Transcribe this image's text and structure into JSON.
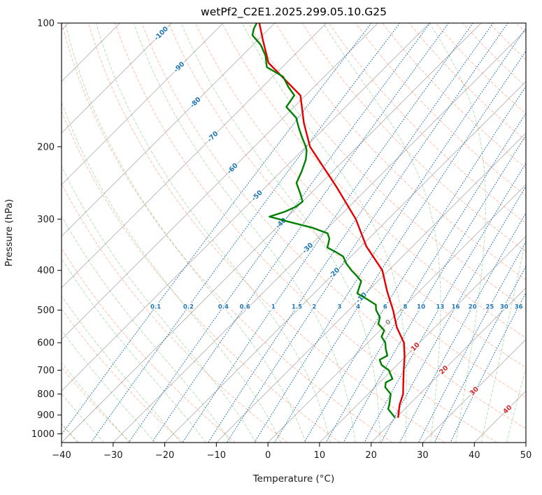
{
  "title": "wetPf2_C2E1.2025.299.05.10.G25",
  "axes": {
    "xlabel": "Temperature (°C)",
    "ylabel": "Pressure (hPa)",
    "xlim": [
      -40,
      50
    ],
    "plim": [
      100,
      1050
    ],
    "x_ticks": [
      {
        "v": -40,
        "label": "−40"
      },
      {
        "v": -30,
        "label": "−30"
      },
      {
        "v": -20,
        "label": "−20"
      },
      {
        "v": -10,
        "label": "−10"
      },
      {
        "v": 0,
        "label": "0"
      },
      {
        "v": 10,
        "label": "10"
      },
      {
        "v": 20,
        "label": "20"
      },
      {
        "v": 30,
        "label": "30"
      },
      {
        "v": 40,
        "label": "40"
      },
      {
        "v": 50,
        "label": "50"
      }
    ],
    "p_ticks": [
      {
        "v": 100,
        "label": "100"
      },
      {
        "v": 200,
        "label": "200"
      },
      {
        "v": 300,
        "label": "300"
      },
      {
        "v": 400,
        "label": "400"
      },
      {
        "v": 500,
        "label": "500"
      },
      {
        "v": 600,
        "label": "600"
      },
      {
        "v": 700,
        "label": "700"
      },
      {
        "v": 800,
        "label": "800"
      },
      {
        "v": 900,
        "label": "900"
      },
      {
        "v": 1000,
        "label": "1000"
      }
    ]
  },
  "chart_data": {
    "type": "skewt",
    "skew_deg": 45,
    "grid": true,
    "isotherms": {
      "min": -150,
      "max": 50,
      "step": 10,
      "color": "#ababab",
      "labels": [
        {
          "t": -100,
          "p": 106,
          "color": "#1f77b4"
        },
        {
          "t": -90,
          "p": 128,
          "color": "#1f77b4"
        },
        {
          "t": -80,
          "p": 156,
          "color": "#1f77b4"
        },
        {
          "t": -70,
          "p": 189,
          "color": "#1f77b4"
        },
        {
          "t": -60,
          "p": 226,
          "color": "#1f77b4"
        },
        {
          "t": -50,
          "p": 263,
          "color": "#1f77b4"
        },
        {
          "t": -40,
          "p": 307,
          "color": "#1f77b4"
        },
        {
          "t": -30,
          "p": 353,
          "color": "#1f77b4"
        },
        {
          "t": -20,
          "p": 406,
          "color": "#1f77b4"
        },
        {
          "t": -10,
          "p": 466,
          "color": "#1f77b4"
        },
        {
          "t": 0,
          "p": 535,
          "color": "#8c8c8c"
        },
        {
          "t": 10,
          "p": 614,
          "color": "#d62728"
        },
        {
          "t": 20,
          "p": 699,
          "color": "#d62728"
        },
        {
          "t": 30,
          "p": 787,
          "color": "#d62728"
        },
        {
          "t": 40,
          "p": 872,
          "color": "#d62728"
        }
      ]
    },
    "dry_adiabats": {
      "theta_min": -40,
      "theta_max": 220,
      "step": 10,
      "color": "rgba(255,69,0,0.33)"
    },
    "moist_adiabats": {
      "t0_min": -40,
      "t0_max": 60,
      "step": 5,
      "color": "rgba(44,160,44,0.33)"
    },
    "mixing_ratio": {
      "color": "#1f77b4",
      "label_pressure": 490,
      "values": [
        0.1,
        0.2,
        0.4,
        0.6,
        1,
        1.5,
        2,
        3,
        4,
        6,
        8,
        10,
        13,
        16,
        20,
        25,
        30,
        36
      ]
    },
    "series": [
      {
        "name": "temperature",
        "color": "#e40000",
        "width": 2.4,
        "points": [
          [
            910,
            20.3
          ],
          [
            850,
            18.2
          ],
          [
            800,
            16.8
          ],
          [
            750,
            14.6
          ],
          [
            700,
            12.3
          ],
          [
            650,
            9.9
          ],
          [
            600,
            7.0
          ],
          [
            550,
            2.6
          ],
          [
            500,
            -1.4
          ],
          [
            450,
            -6.2
          ],
          [
            400,
            -11.2
          ],
          [
            350,
            -18.9
          ],
          [
            300,
            -26.3
          ],
          [
            250,
            -36.4
          ],
          [
            200,
            -49.2
          ],
          [
            175,
            -55.0
          ],
          [
            150,
            -61.0
          ],
          [
            125,
            -73.5
          ],
          [
            110,
            -79.0
          ],
          [
            100,
            -83.0
          ]
        ]
      },
      {
        "name": "dewpoint",
        "color": "#008000",
        "width": 2.4,
        "points": [
          [
            910,
            19.6
          ],
          [
            870,
            16.8
          ],
          [
            850,
            16.2
          ],
          [
            800,
            14.4
          ],
          [
            770,
            12.0
          ],
          [
            750,
            11.2
          ],
          [
            735,
            11.8
          ],
          [
            700,
            9.4
          ],
          [
            680,
            7.0
          ],
          [
            660,
            5.6
          ],
          [
            645,
            6.3
          ],
          [
            620,
            4.6
          ],
          [
            600,
            3.4
          ],
          [
            580,
            1.5
          ],
          [
            560,
            0.8
          ],
          [
            540,
            -1.6
          ],
          [
            520,
            -2.6
          ],
          [
            500,
            -4.7
          ],
          [
            485,
            -5.8
          ],
          [
            470,
            -8.6
          ],
          [
            455,
            -11.6
          ],
          [
            440,
            -12.4
          ],
          [
            425,
            -13.2
          ],
          [
            410,
            -15.5
          ],
          [
            400,
            -17.2
          ],
          [
            385,
            -19.5
          ],
          [
            370,
            -21.5
          ],
          [
            360,
            -24.0
          ],
          [
            352,
            -26.3
          ],
          [
            345,
            -26.8
          ],
          [
            335,
            -27.6
          ],
          [
            325,
            -29.0
          ],
          [
            315,
            -33.0
          ],
          [
            305,
            -38.5
          ],
          [
            296,
            -43.5
          ],
          [
            288,
            -41.5
          ],
          [
            280,
            -40.3
          ],
          [
            272,
            -40.0
          ],
          [
            260,
            -42.0
          ],
          [
            245,
            -44.8
          ],
          [
            230,
            -46.0
          ],
          [
            215,
            -47.5
          ],
          [
            205,
            -49.0
          ],
          [
            200,
            -50.0
          ],
          [
            190,
            -52.5
          ],
          [
            180,
            -55.0
          ],
          [
            170,
            -57.5
          ],
          [
            160,
            -61.5
          ],
          [
            150,
            -62.2
          ],
          [
            143,
            -65.0
          ],
          [
            135,
            -68.0
          ],
          [
            128,
            -73.0
          ],
          [
            120,
            -75.5
          ],
          [
            113,
            -78.5
          ],
          [
            107,
            -82.0
          ],
          [
            103,
            -83.0
          ],
          [
            100,
            -83.5
          ]
        ]
      }
    ]
  }
}
